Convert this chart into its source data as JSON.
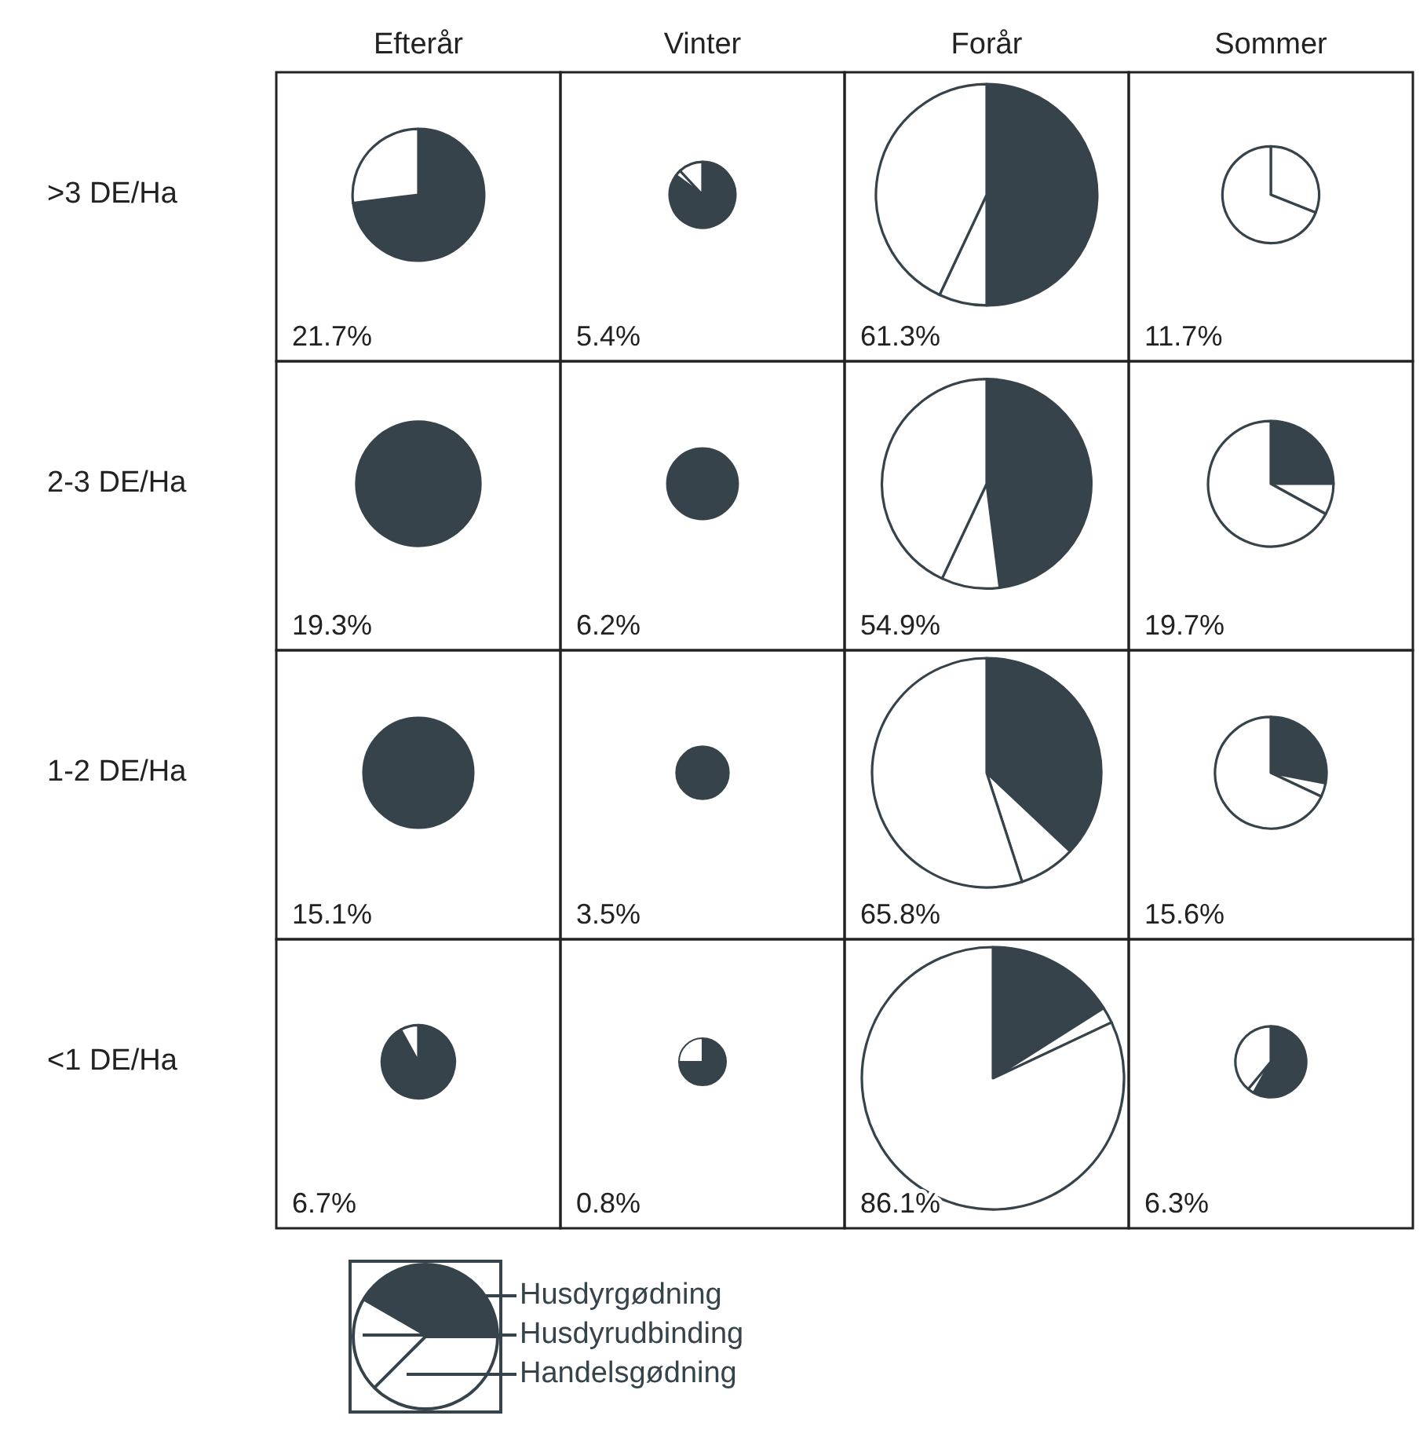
{
  "chart_data": [
    {
      "type": "pie",
      "title": "Efterår",
      "ylabel": ">3 DE/Ha",
      "categories": [
        "Husdyrgødning",
        "Husdyrudbinding",
        "Handelsgødning"
      ],
      "values": [
        73,
        0,
        27
      ],
      "colors": [
        "#36434b",
        "#ffffff",
        "#ffffff"
      ],
      "annotations": [
        "21.7%"
      ],
      "legend": "bottom"
    },
    {
      "type": "pie",
      "title": "Vinter",
      "categories": [
        null,
        null,
        null
      ],
      "values": [
        85,
        3,
        12
      ],
      "colors": [
        "#36434b",
        "#ffffff",
        "#ffffff"
      ],
      "annotations": [
        "5.4%"
      ]
    },
    {
      "type": "pie",
      "title": "Forår",
      "categories": [
        null,
        null,
        null
      ],
      "values": [
        50,
        7,
        43
      ],
      "colors": [
        "#36434b",
        "#ffffff",
        "#ffffff"
      ],
      "annotations": [
        "61.3%"
      ]
    },
    {
      "type": "pie",
      "title": "Sommer",
      "categories": [
        null,
        null,
        null
      ],
      "values": [
        0,
        31,
        69
      ],
      "colors": [
        null,
        "#ffffff",
        "#ffffff"
      ],
      "annotations": [
        "11.7%"
      ]
    },
    {
      "type": "pie",
      "ylabel": "2-3 DE/Ha",
      "categories": [
        null,
        null,
        null
      ],
      "values": [
        100,
        0,
        0
      ],
      "colors": [
        "#36434b",
        null,
        null
      ],
      "annotations": [
        "19.3%"
      ]
    },
    {
      "type": "pie",
      "categories": [
        null,
        null,
        null
      ],
      "values": [
        100,
        0,
        0
      ],
      "colors": [
        "#36434b",
        null,
        null
      ],
      "annotations": [
        "6.2%"
      ]
    },
    {
      "type": "pie",
      "categories": [
        null,
        null,
        null
      ],
      "values": [
        48,
        9,
        43
      ],
      "colors": [
        "#36434b",
        "#ffffff",
        "#ffffff"
      ],
      "annotations": [
        "54.9%"
      ]
    },
    {
      "type": "pie",
      "categories": [
        null,
        null,
        null
      ],
      "values": [
        25,
        8,
        67
      ],
      "colors": [
        "#36434b",
        "#ffffff",
        "#ffffff"
      ],
      "annotations": [
        "19.7%"
      ]
    },
    {
      "type": "pie",
      "ylabel": "1-2 DE/Ha",
      "categories": [
        null,
        null,
        null
      ],
      "values": [
        100,
        0,
        0
      ],
      "colors": [
        "#36434b",
        null,
        null
      ],
      "annotations": [
        "15.1%"
      ]
    },
    {
      "type": "pie",
      "categories": [
        null,
        null,
        null
      ],
      "values": [
        100,
        0,
        0
      ],
      "colors": [
        "#36434b",
        null,
        null
      ],
      "annotations": [
        "3.5%"
      ]
    },
    {
      "type": "pie",
      "categories": [
        null,
        null,
        null
      ],
      "values": [
        37,
        8,
        55
      ],
      "colors": [
        "#36434b",
        "#ffffff",
        "#ffffff"
      ],
      "annotations": [
        "65.8%"
      ]
    },
    {
      "type": "pie",
      "categories": [
        null,
        null,
        null
      ],
      "values": [
        28,
        4,
        68
      ],
      "colors": [
        "#36434b",
        "#ffffff",
        "#ffffff"
      ],
      "annotations": [
        "15.6%"
      ]
    },
    {
      "type": "pie",
      "ylabel": "<1 DE/Ha",
      "categories": [
        null,
        null,
        null
      ],
      "values": [
        92,
        0,
        8
      ],
      "colors": [
        "#36434b",
        null,
        "#ffffff"
      ],
      "annotations": [
        "6.7%"
      ]
    },
    {
      "type": "pie",
      "categories": [
        null,
        null,
        null
      ],
      "values": [
        75,
        0,
        25
      ],
      "colors": [
        "#36434b",
        null,
        "#ffffff"
      ],
      "annotations": [
        "0.8%"
      ]
    },
    {
      "type": "pie",
      "categories": [
        null,
        null,
        null
      ],
      "values": [
        16,
        2,
        82
      ],
      "colors": [
        "#36434b",
        "#ffffff",
        "#ffffff"
      ],
      "annotations": [
        "86.1%"
      ]
    },
    {
      "type": "pie",
      "categories": [
        null,
        null,
        null
      ],
      "values": [
        58,
        3,
        39
      ],
      "colors": [
        "#36434b",
        "#ffffff",
        "#ffffff"
      ],
      "annotations": [
        "6.3%"
      ]
    }
  ]
}
